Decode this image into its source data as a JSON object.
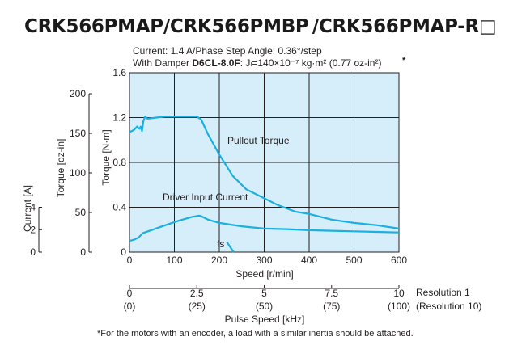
{
  "page": {
    "title": "CRK566PMAP/CRK566PMBP /CRK566PMAP-R□"
  },
  "chart_data": {
    "type": "line",
    "conditions": {
      "line1": "Current: 1.4 A/Phase  Step Angle: 0.36°/step",
      "line2_prefix": "With Damper ",
      "damper_model": "D6CL-8.0F",
      "line2_inertia": ": Jₗ=140×10⁻⁷ kg·m² (0.77 oz-in²)",
      "asterisk": "*"
    },
    "x_axis": {
      "label": "Speed [r/min]",
      "range": [
        0,
        600
      ],
      "ticks": [
        "0",
        "100",
        "200",
        "300",
        "400",
        "500",
        "600"
      ]
    },
    "y_axis_torque_nm": {
      "label": "Torque [N·m]",
      "range": [
        0,
        1.6
      ],
      "ticks": [
        "0",
        "0.4",
        "0.8",
        "1.2",
        "1.6"
      ]
    },
    "y_axis_torque_ozin": {
      "label": "Torque [oz-in]",
      "ticks": [
        "0",
        "50",
        "100",
        "150",
        "200"
      ],
      "values": [
        0,
        50,
        100,
        150,
        200
      ]
    },
    "y_axis_current": {
      "label": "Current [A]",
      "ticks": [
        "0",
        "2",
        "4"
      ],
      "values": [
        0,
        2,
        4
      ]
    },
    "pulse_axis": {
      "label": "Pulse Speed [kHz]",
      "ticks_res1": [
        "0",
        "2.5",
        "5",
        "7.5",
        "10"
      ],
      "ticks_res10": [
        "(0)",
        "(25)",
        "(50)",
        "(75)",
        "(100)"
      ],
      "res1_label": "Resolution 1",
      "res10_label": "(Resolution 10)"
    },
    "series": [
      {
        "name": "Pullout Torque",
        "color": "#1ab0e0",
        "points": [
          [
            0,
            1.07
          ],
          [
            10,
            1.09
          ],
          [
            17,
            1.12
          ],
          [
            22,
            1.1
          ],
          [
            25,
            1.12
          ],
          [
            28,
            1.08
          ],
          [
            31,
            1.17
          ],
          [
            35,
            1.21
          ],
          [
            40,
            1.19
          ],
          [
            60,
            1.2
          ],
          [
            80,
            1.21
          ],
          [
            110,
            1.21
          ],
          [
            140,
            1.21
          ],
          [
            150,
            1.21
          ],
          [
            160,
            1.18
          ],
          [
            175,
            1.05
          ],
          [
            200,
            0.87
          ],
          [
            230,
            0.68
          ],
          [
            260,
            0.56
          ],
          [
            300,
            0.48
          ],
          [
            330,
            0.42
          ],
          [
            370,
            0.36
          ],
          [
            400,
            0.34
          ],
          [
            450,
            0.29
          ],
          [
            500,
            0.26
          ],
          [
            550,
            0.24
          ],
          [
            600,
            0.21
          ]
        ]
      },
      {
        "name": "Driver Input Current",
        "color": "#1ab0e0",
        "points": [
          [
            0,
            0.1
          ],
          [
            10,
            0.11
          ],
          [
            20,
            0.13
          ],
          [
            30,
            0.17
          ],
          [
            45,
            0.19
          ],
          [
            80,
            0.24
          ],
          [
            110,
            0.28
          ],
          [
            140,
            0.315
          ],
          [
            155,
            0.325
          ],
          [
            160,
            0.32
          ],
          [
            175,
            0.29
          ],
          [
            200,
            0.26
          ],
          [
            250,
            0.23
          ],
          [
            300,
            0.21
          ],
          [
            350,
            0.205
          ],
          [
            400,
            0.195
          ],
          [
            450,
            0.19
          ],
          [
            500,
            0.185
          ],
          [
            550,
            0.18
          ],
          [
            600,
            0.175
          ]
        ]
      }
    ],
    "fs_label": "fs",
    "fs_line": [
      [
        217,
        0.09
      ],
      [
        225,
        0.04
      ],
      [
        232,
        0.0
      ]
    ],
    "annotations": {
      "pullout": "Pullout Torque",
      "current": "Driver Input Current"
    },
    "footnote": "*For the motors with an encoder, a load with a similar inertia should be attached."
  }
}
